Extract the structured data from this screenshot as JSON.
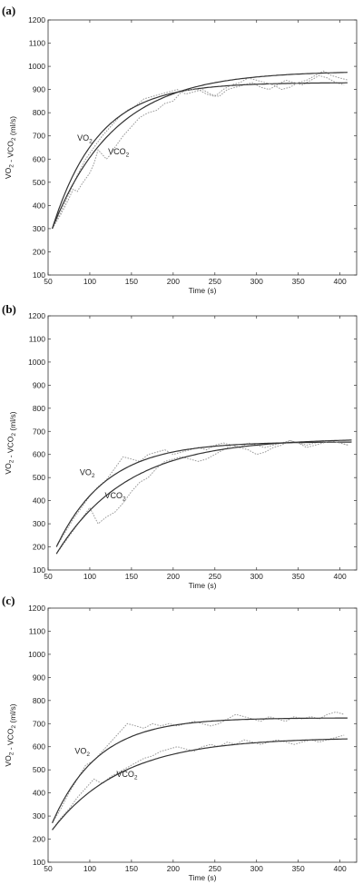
{
  "chart_data": [
    {
      "type": "line",
      "panel_label": "(a)",
      "xlabel": "Time (s)",
      "ylabel": "VO2 - VCO2 (ml/s)",
      "xlim": [
        50,
        420
      ],
      "ylim": [
        100,
        1200
      ],
      "x_ticks": [
        50,
        100,
        150,
        200,
        250,
        300,
        350,
        400
      ],
      "y_ticks": [
        100,
        200,
        300,
        400,
        500,
        600,
        700,
        800,
        900,
        1000,
        1100,
        1200
      ],
      "grid": false,
      "series": [
        {
          "name": "VO2",
          "label_at": [
            85,
            680
          ],
          "fit": {
            "y0": 300,
            "yss": 930,
            "tau": 55,
            "t0": 55,
            "t_end": 410
          },
          "raw": [
            [
              55,
              300
            ],
            [
              65,
              370
            ],
            [
              75,
              450
            ],
            [
              85,
              530
            ],
            [
              95,
              600
            ],
            [
              105,
              650
            ],
            [
              115,
              700
            ],
            [
              125,
              740
            ],
            [
              135,
              780
            ],
            [
              145,
              810
            ],
            [
              155,
              830
            ],
            [
              165,
              860
            ],
            [
              175,
              870
            ],
            [
              185,
              880
            ],
            [
              195,
              890
            ],
            [
              205,
              900
            ],
            [
              215,
              880
            ],
            [
              225,
              890
            ],
            [
              235,
              900
            ],
            [
              245,
              880
            ],
            [
              255,
              870
            ],
            [
              265,
              900
            ],
            [
              275,
              910
            ],
            [
              285,
              920
            ],
            [
              295,
              930
            ],
            [
              305,
              910
            ],
            [
              315,
              900
            ],
            [
              325,
              920
            ],
            [
              335,
              940
            ],
            [
              345,
              930
            ],
            [
              355,
              920
            ],
            [
              365,
              940
            ],
            [
              375,
              960
            ],
            [
              385,
              950
            ],
            [
              395,
              930
            ],
            [
              405,
              920
            ]
          ]
        },
        {
          "name": "VCO2",
          "label_at": [
            122,
            620
          ],
          "fit": {
            "y0": 300,
            "yss": 980,
            "tau": 75,
            "t0": 55,
            "t_end": 410
          },
          "raw": [
            [
              55,
              300
            ],
            [
              65,
              360
            ],
            [
              75,
              430
            ],
            [
              80,
              470
            ],
            [
              85,
              460
            ],
            [
              90,
              490
            ],
            [
              100,
              540
            ],
            [
              105,
              580
            ],
            [
              110,
              640
            ],
            [
              120,
              600
            ],
            [
              125,
              620
            ],
            [
              130,
              650
            ],
            [
              140,
              700
            ],
            [
              150,
              740
            ],
            [
              160,
              780
            ],
            [
              170,
              800
            ],
            [
              180,
              810
            ],
            [
              190,
              840
            ],
            [
              200,
              850
            ],
            [
              210,
              890
            ],
            [
              220,
              900
            ],
            [
              230,
              900
            ],
            [
              240,
              880
            ],
            [
              250,
              870
            ],
            [
              260,
              900
            ],
            [
              270,
              920
            ],
            [
              280,
              930
            ],
            [
              290,
              950
            ],
            [
              300,
              940
            ],
            [
              310,
              930
            ],
            [
              320,
              920
            ],
            [
              330,
              900
            ],
            [
              340,
              910
            ],
            [
              350,
              930
            ],
            [
              360,
              940
            ],
            [
              370,
              960
            ],
            [
              380,
              980
            ],
            [
              390,
              960
            ],
            [
              400,
              950
            ],
            [
              410,
              940
            ]
          ]
        }
      ]
    },
    {
      "type": "line",
      "panel_label": "(b)",
      "xlabel": "Time (s)",
      "ylabel": "VO2 - VCO2 (ml/s)",
      "xlim": [
        50,
        420
      ],
      "ylim": [
        100,
        1200
      ],
      "x_ticks": [
        50,
        100,
        150,
        200,
        250,
        300,
        350,
        400
      ],
      "y_ticks": [
        100,
        200,
        300,
        400,
        500,
        600,
        700,
        800,
        900,
        1000,
        1100,
        1200
      ],
      "grid": false,
      "series": [
        {
          "name": "VO2",
          "label_at": [
            88,
            510
          ],
          "fit": {
            "y0": 200,
            "yss": 655,
            "tau": 60,
            "t0": 60,
            "t_end": 415
          },
          "raw": [
            [
              60,
              200
            ],
            [
              70,
              260
            ],
            [
              80,
              320
            ],
            [
              90,
              370
            ],
            [
              100,
              420
            ],
            [
              110,
              460
            ],
            [
              120,
              490
            ],
            [
              130,
              540
            ],
            [
              140,
              590
            ],
            [
              150,
              580
            ],
            [
              160,
              570
            ],
            [
              170,
              600
            ],
            [
              180,
              610
            ],
            [
              190,
              620
            ],
            [
              200,
              600
            ],
            [
              210,
              610
            ],
            [
              220,
              620
            ],
            [
              230,
              630
            ],
            [
              240,
              620
            ],
            [
              250,
              640
            ],
            [
              260,
              650
            ],
            [
              270,
              640
            ],
            [
              280,
              630
            ],
            [
              290,
              650
            ],
            [
              300,
              640
            ],
            [
              310,
              630
            ],
            [
              320,
              640
            ],
            [
              330,
              650
            ],
            [
              340,
              660
            ],
            [
              350,
              650
            ],
            [
              360,
              640
            ],
            [
              370,
              650
            ],
            [
              380,
              660
            ],
            [
              390,
              660
            ],
            [
              400,
              650
            ],
            [
              410,
              640
            ]
          ]
        },
        {
          "name": "VCO2",
          "label_at": [
            118,
            410
          ],
          "fit": {
            "y0": 170,
            "yss": 670,
            "tau": 85,
            "t0": 60,
            "t_end": 415
          },
          "raw": [
            [
              60,
              170
            ],
            [
              70,
              220
            ],
            [
              80,
              270
            ],
            [
              90,
              320
            ],
            [
              100,
              370
            ],
            [
              110,
              300
            ],
            [
              120,
              330
            ],
            [
              130,
              350
            ],
            [
              140,
              390
            ],
            [
              150,
              440
            ],
            [
              160,
              480
            ],
            [
              170,
              500
            ],
            [
              180,
              540
            ],
            [
              190,
              570
            ],
            [
              200,
              580
            ],
            [
              210,
              590
            ],
            [
              220,
              580
            ],
            [
              230,
              570
            ],
            [
              240,
              580
            ],
            [
              250,
              600
            ],
            [
              260,
              620
            ],
            [
              270,
              640
            ],
            [
              280,
              630
            ],
            [
              290,
              620
            ],
            [
              300,
              600
            ],
            [
              310,
              610
            ],
            [
              320,
              630
            ],
            [
              330,
              640
            ],
            [
              340,
              660
            ],
            [
              350,
              650
            ],
            [
              360,
              630
            ],
            [
              370,
              640
            ],
            [
              380,
              650
            ],
            [
              390,
              660
            ],
            [
              400,
              650
            ],
            [
              410,
              640
            ]
          ]
        }
      ]
    },
    {
      "type": "line",
      "panel_label": "(c)",
      "xlabel": "Time (s)",
      "ylabel": "VO2 - VCO2 (ml/s)",
      "xlim": [
        50,
        420
      ],
      "ylim": [
        100,
        1200
      ],
      "x_ticks": [
        50,
        100,
        150,
        200,
        250,
        300,
        350,
        400
      ],
      "y_ticks": [
        100,
        200,
        300,
        400,
        500,
        600,
        700,
        800,
        900,
        1000,
        1100,
        1200
      ],
      "grid": false,
      "series": [
        {
          "name": "VO2",
          "label_at": [
            82,
            570
          ],
          "fit": {
            "y0": 270,
            "yss": 725,
            "tau": 55,
            "t0": 55,
            "t_end": 410
          },
          "raw": [
            [
              55,
              270
            ],
            [
              65,
              330
            ],
            [
              75,
              400
            ],
            [
              85,
              460
            ],
            [
              95,
              520
            ],
            [
              105,
              540
            ],
            [
              115,
              580
            ],
            [
              125,
              620
            ],
            [
              135,
              660
            ],
            [
              145,
              700
            ],
            [
              155,
              690
            ],
            [
              165,
              680
            ],
            [
              175,
              700
            ],
            [
              185,
              690
            ],
            [
              195,
              700
            ],
            [
              205,
              690
            ],
            [
              215,
              700
            ],
            [
              225,
              710
            ],
            [
              235,
              700
            ],
            [
              245,
              690
            ],
            [
              255,
              700
            ],
            [
              265,
              720
            ],
            [
              275,
              740
            ],
            [
              285,
              730
            ],
            [
              295,
              720
            ],
            [
              305,
              710
            ],
            [
              315,
              730
            ],
            [
              325,
              720
            ],
            [
              335,
              710
            ],
            [
              345,
              730
            ],
            [
              355,
              720
            ],
            [
              365,
              730
            ],
            [
              375,
              720
            ],
            [
              385,
              740
            ],
            [
              395,
              750
            ],
            [
              405,
              740
            ]
          ]
        },
        {
          "name": "VCO2",
          "label_at": [
            132,
            470
          ],
          "fit": {
            "y0": 240,
            "yss": 640,
            "tau": 85,
            "t0": 55,
            "t_end": 410
          },
          "raw": [
            [
              55,
              240
            ],
            [
              65,
              290
            ],
            [
              75,
              330
            ],
            [
              85,
              380
            ],
            [
              95,
              420
            ],
            [
              105,
              460
            ],
            [
              115,
              440
            ],
            [
              125,
              470
            ],
            [
              135,
              490
            ],
            [
              145,
              510
            ],
            [
              155,
              530
            ],
            [
              165,
              550
            ],
            [
              175,
              560
            ],
            [
              185,
              580
            ],
            [
              195,
              590
            ],
            [
              205,
              600
            ],
            [
              215,
              590
            ],
            [
              225,
              580
            ],
            [
              235,
              600
            ],
            [
              245,
              610
            ],
            [
              255,
              600
            ],
            [
              265,
              620
            ],
            [
              275,
              610
            ],
            [
              285,
              630
            ],
            [
              295,
              620
            ],
            [
              305,
              610
            ],
            [
              315,
              620
            ],
            [
              325,
              630
            ],
            [
              335,
              620
            ],
            [
              345,
              610
            ],
            [
              355,
              620
            ],
            [
              365,
              630
            ],
            [
              375,
              620
            ],
            [
              385,
              630
            ],
            [
              395,
              640
            ],
            [
              405,
              650
            ]
          ]
        }
      ]
    }
  ]
}
